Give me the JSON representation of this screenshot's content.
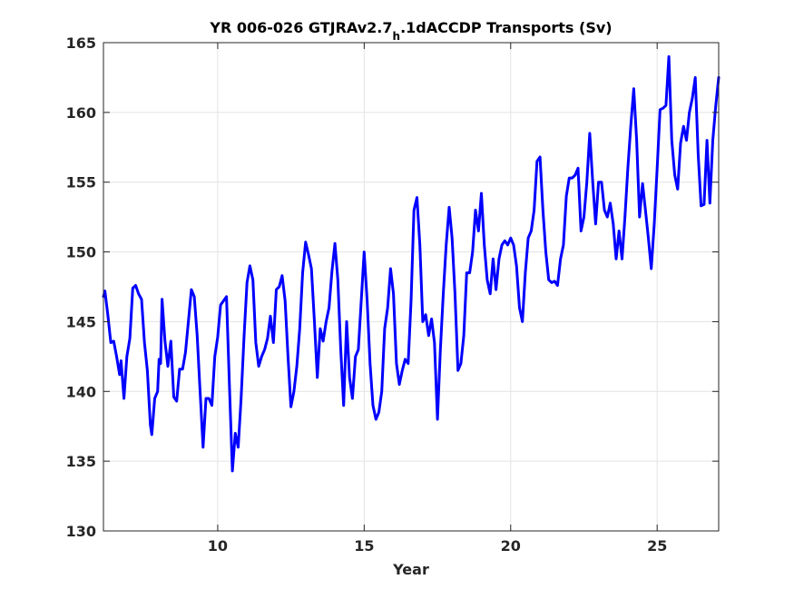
{
  "chart_data": {
    "type": "line",
    "title": {
      "prefix": "YR 006-026 GTJRAv2.7",
      "subscript": "h",
      "suffix": ".1dACCDP Transports (Sv)"
    },
    "xlabel": "Year",
    "ylabel": "",
    "xlim": [
      6.1,
      27.1
    ],
    "ylim": [
      130,
      165
    ],
    "xticks": [
      10,
      15,
      20,
      25
    ],
    "yticks": [
      130,
      135,
      140,
      145,
      150,
      155,
      160,
      165
    ],
    "xtick_labels": [
      "10",
      "15",
      "20",
      "25"
    ],
    "ytick_labels": [
      "130",
      "135",
      "140",
      "145",
      "150",
      "155",
      "160",
      "165"
    ],
    "grid": true,
    "line_color": "#0000ff",
    "series": [
      {
        "x": [
          6.1,
          6.15,
          6.25,
          6.35,
          6.45,
          6.55,
          6.65,
          6.7,
          6.8,
          6.9,
          7.0,
          7.1,
          7.2,
          7.3,
          7.4,
          7.5,
          7.6,
          7.7,
          7.75,
          7.85,
          7.95,
          8.0,
          8.05,
          8.1,
          8.2,
          8.3,
          8.4,
          8.5,
          8.6,
          8.7,
          8.8,
          8.9,
          9.0,
          9.1,
          9.2,
          9.3,
          9.4,
          9.5,
          9.6,
          9.7,
          9.8,
          9.9,
          10.0,
          10.1,
          10.2,
          10.3,
          10.4,
          10.5,
          10.6,
          10.7,
          10.8,
          10.9,
          11.0,
          11.1,
          11.2,
          11.3,
          11.4,
          11.5,
          11.6,
          11.7,
          11.8,
          11.9,
          12.0,
          12.1,
          12.2,
          12.3,
          12.4,
          12.5,
          12.6,
          12.7,
          12.8,
          12.9,
          13.0,
          13.1,
          13.2,
          13.3,
          13.4,
          13.5,
          13.6,
          13.7,
          13.8,
          13.9,
          14.0,
          14.1,
          14.2,
          14.3,
          14.4,
          14.5,
          14.6,
          14.7,
          14.8,
          14.9,
          15.0,
          15.1,
          15.2,
          15.3,
          15.4,
          15.5,
          15.6,
          15.7,
          15.8,
          15.9,
          16.0,
          16.1,
          16.2,
          16.3,
          16.4,
          16.5,
          16.6,
          16.7,
          16.8,
          16.9,
          17.0,
          17.1,
          17.2,
          17.3,
          17.4,
          17.5,
          17.6,
          17.7,
          17.8,
          17.9,
          18.0,
          18.1,
          18.2,
          18.3,
          18.4,
          18.5,
          18.6,
          18.7,
          18.8,
          18.9,
          19.0,
          19.1,
          19.2,
          19.3,
          19.4,
          19.5,
          19.6,
          19.7,
          19.8,
          19.9,
          20.0,
          20.1,
          20.2,
          20.3,
          20.4,
          20.5,
          20.6,
          20.7,
          20.8,
          20.9,
          21.0,
          21.1,
          21.2,
          21.3,
          21.4,
          21.5,
          21.6,
          21.7,
          21.8,
          21.9,
          22.0,
          22.1,
          22.2,
          22.3,
          22.4,
          22.5,
          22.6,
          22.7,
          22.8,
          22.9,
          23.0,
          23.1,
          23.2,
          23.3,
          23.4,
          23.5,
          23.6,
          23.7,
          23.8,
          23.9,
          24.0,
          24.1,
          24.2,
          24.3,
          24.4,
          24.5,
          24.6,
          24.7,
          24.8,
          24.9,
          25.0,
          25.1,
          25.2,
          25.3,
          25.4,
          25.5,
          25.6,
          25.7,
          25.8,
          25.9,
          26.0,
          26.1,
          26.2,
          26.3,
          26.4,
          26.5,
          26.6,
          26.7,
          26.8,
          26.9,
          27.0,
          27.1
        ],
        "values": [
          146.8,
          147.2,
          145.5,
          143.5,
          143.6,
          142.5,
          141.2,
          142.2,
          139.5,
          142.5,
          143.8,
          147.4,
          147.6,
          147.0,
          146.6,
          143.5,
          141.5,
          137.6,
          136.9,
          139.5,
          140.0,
          142.3,
          142.0,
          146.6,
          143.6,
          141.8,
          143.6,
          139.6,
          139.3,
          141.6,
          141.6,
          142.8,
          145.0,
          147.3,
          146.8,
          144.0,
          140.0,
          136.0,
          139.5,
          139.5,
          139.0,
          142.5,
          143.9,
          146.2,
          146.5,
          146.8,
          140.5,
          134.3,
          137.0,
          136.0,
          139.5,
          144.0,
          147.8,
          149.0,
          148.0,
          143.5,
          141.8,
          142.5,
          143.0,
          143.8,
          145.4,
          143.5,
          147.3,
          147.5,
          148.3,
          146.5,
          142.5,
          138.9,
          140.0,
          141.8,
          144.5,
          148.5,
          150.7,
          149.8,
          148.8,
          145.0,
          141.0,
          144.5,
          143.6,
          145.0,
          146.0,
          148.6,
          150.6,
          148.0,
          143.0,
          139.0,
          145.0,
          141.0,
          139.5,
          142.5,
          143.0,
          146.5,
          150.0,
          146.5,
          142.0,
          139.0,
          138.0,
          138.5,
          140.0,
          144.5,
          146.0,
          148.8,
          147.0,
          142.0,
          140.5,
          141.5,
          142.3,
          142.0,
          146.5,
          153.0,
          153.9,
          150.5,
          145.0,
          145.5,
          144.0,
          145.2,
          143.5,
          138.0,
          143.0,
          147.0,
          150.5,
          153.2,
          151.0,
          147.0,
          141.5,
          142.0,
          144.0,
          148.5,
          148.5,
          150.0,
          153.0,
          151.5,
          154.2,
          150.5,
          148.0,
          147.0,
          149.5,
          147.3,
          149.5,
          150.5,
          150.8,
          150.5,
          151.0,
          150.5,
          149.0,
          146.0,
          145.0,
          148.5,
          151.0,
          151.5,
          153.0,
          156.5,
          156.8,
          153.0,
          150.0,
          148.0,
          147.8,
          147.9,
          147.6,
          149.5,
          150.5,
          154.0,
          155.3,
          155.3,
          155.5,
          156.0,
          151.5,
          152.5,
          155.0,
          158.5,
          155.0,
          152.0,
          155.0,
          155.0,
          153.0,
          152.5,
          153.5,
          152.0,
          149.5,
          151.5,
          149.5,
          152.5,
          156.0,
          159.0,
          161.7,
          158.0,
          152.5,
          154.9,
          153.0,
          151.0,
          148.8,
          152.0,
          156.0,
          160.2,
          160.3,
          160.5,
          164.0,
          158.0,
          155.5,
          154.5,
          157.8,
          159.0,
          158.0,
          160.0,
          161.0,
          162.5,
          157.0,
          153.3,
          153.4,
          158.0,
          153.5,
          158.0,
          160.5,
          162.5
        ]
      }
    ]
  }
}
